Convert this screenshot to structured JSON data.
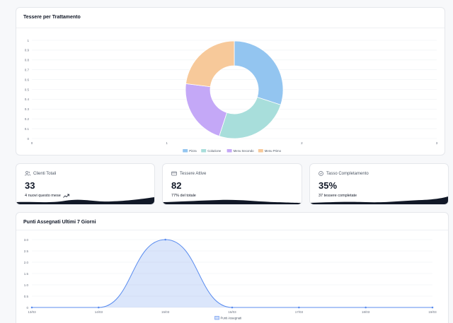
{
  "donut_card": {
    "title": "Tessere per Trattamento",
    "y_ticks": [
      "1",
      "0.9",
      "0.8",
      "0.7",
      "0.6",
      "0.5",
      "0.4",
      "0.3",
      "0.2",
      "0.1",
      "0"
    ],
    "x_ticks": [
      "0",
      "1",
      "2",
      "3"
    ]
  },
  "stats": [
    {
      "label": "Clienti Totali",
      "value": "33",
      "sub": "4 nuovi questo mese",
      "icon": "users-icon"
    },
    {
      "label": "Tessere Attive",
      "value": "82",
      "sub": "77% del totale",
      "icon": "card-icon"
    },
    {
      "label": "Tasso Completamento",
      "value": "35%",
      "sub": "37 tessere completate",
      "icon": "check-circle-icon"
    }
  ],
  "line_card": {
    "title": "Punti Assegnati Ultimi 7 Giorni"
  },
  "chart_data": [
    {
      "type": "pie",
      "categories": [
        "Pizza",
        "Colazione",
        "Menu Secondo",
        "Menu Primo"
      ],
      "values": [
        30,
        25,
        22,
        23
      ],
      "colors": [
        "#93c5f0",
        "#a8dedb",
        "#c4a8f7",
        "#f7c99a"
      ],
      "legend": "bottom"
    },
    {
      "type": "area",
      "x": [
        "13/03",
        "14/03",
        "15/03",
        "16/03",
        "17/03",
        "18/03",
        "19/03"
      ],
      "series": [
        {
          "name": "Punti Assegnati",
          "values": [
            0,
            0,
            3,
            0,
            0,
            0,
            0
          ]
        }
      ],
      "y_ticks": [
        "3.0",
        "2.5",
        "2.0",
        "1.5",
        "1.0",
        "0.5",
        "0"
      ],
      "ylim": [
        0,
        3
      ],
      "grid": true,
      "legend": "bottom",
      "color": "#5b8def"
    }
  ]
}
